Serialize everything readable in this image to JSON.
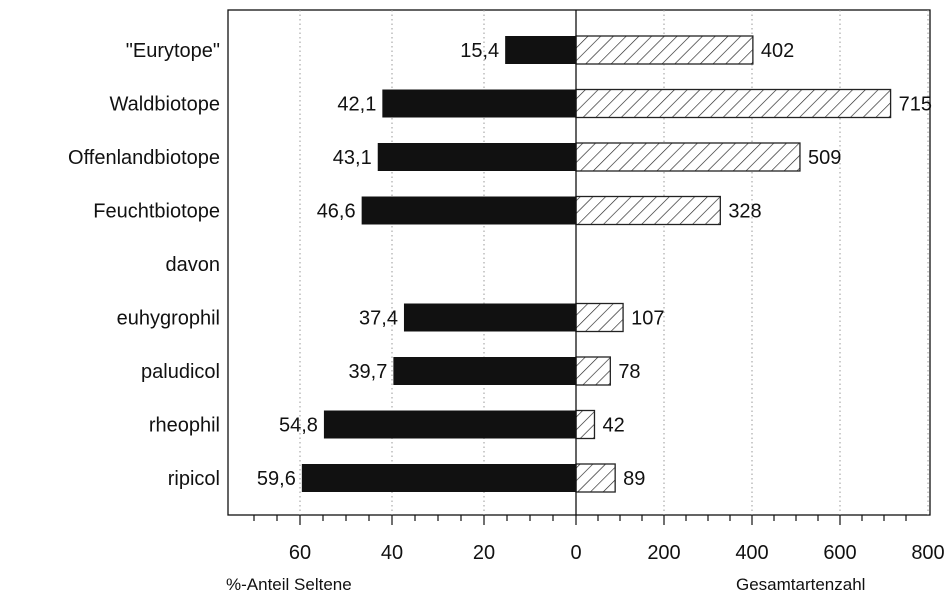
{
  "chart_data": {
    "type": "bar",
    "orientation": "horizontal",
    "categories": [
      "\"Eurytope\"",
      "Waldbiotope",
      "Offenlandbiotope",
      "Feuchtbiotope",
      "davon",
      "euhygrophil",
      "paludicol",
      "rheophil",
      "ripicol"
    ],
    "series": [
      {
        "name": "%-Anteil Seltene",
        "side": "left",
        "values": [
          15.4,
          42.1,
          43.1,
          46.6,
          null,
          37.4,
          39.7,
          54.8,
          59.6
        ],
        "labels": [
          "15,4",
          "42,1",
          "43,1",
          "46,6",
          "",
          "37,4",
          "39,7",
          "54,8",
          "59,6"
        ],
        "fill": "solid"
      },
      {
        "name": "Gesamtartenzahl",
        "side": "right",
        "values": [
          402,
          715,
          509,
          328,
          null,
          107,
          78,
          42,
          89
        ],
        "labels": [
          "402",
          "715",
          "509",
          "328",
          "",
          "107",
          "78",
          "42",
          "89"
        ],
        "fill": "hatched"
      }
    ],
    "left_axis": {
      "title": "%-Anteil Seltene",
      "range": [
        0,
        60
      ],
      "ticks": [
        "60",
        "40",
        "20",
        "0"
      ],
      "tick_values": [
        60,
        40,
        20,
        0
      ]
    },
    "right_axis": {
      "title": "Gesamtartenzahl",
      "range": [
        0,
        800
      ],
      "ticks": [
        "200",
        "400",
        "600",
        "800"
      ],
      "tick_values": [
        200,
        400,
        600,
        800
      ]
    },
    "grid": "dotted vertical",
    "colors": {
      "bar_left": "#111111",
      "hatch": "#222222",
      "axis": "#111111",
      "grid": "#9a9a9a"
    }
  }
}
